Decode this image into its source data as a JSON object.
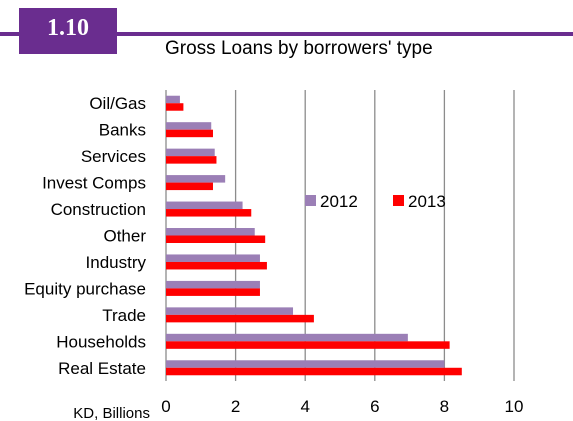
{
  "badge": "1.10",
  "chart_data": {
    "type": "bar",
    "orientation": "horizontal",
    "title": "Gross Loans by borrowers' type",
    "xlabel": "KD, Billions",
    "categories": [
      "Oil/Gas",
      "Banks",
      "Services",
      "Invest Comps",
      "Construction",
      "Other",
      "Industry",
      "Equity purchase",
      "Trade",
      "Households",
      "Real Estate"
    ],
    "series": [
      {
        "name": "2012",
        "color": "#9b7fb6",
        "values": [
          0.4,
          1.3,
          1.4,
          1.7,
          2.2,
          2.55,
          2.7,
          2.7,
          3.65,
          6.95,
          8.0
        ]
      },
      {
        "name": "2013",
        "color": "#ff0000",
        "values": [
          0.5,
          1.35,
          1.45,
          1.35,
          2.45,
          2.85,
          2.9,
          2.7,
          4.25,
          8.15,
          8.5
        ]
      }
    ],
    "xlim": [
      0,
      10
    ],
    "xticks": [
      "0",
      "2",
      "4",
      "6",
      "8",
      "10"
    ],
    "grid": "vertical",
    "legend": "inside-center-right"
  }
}
